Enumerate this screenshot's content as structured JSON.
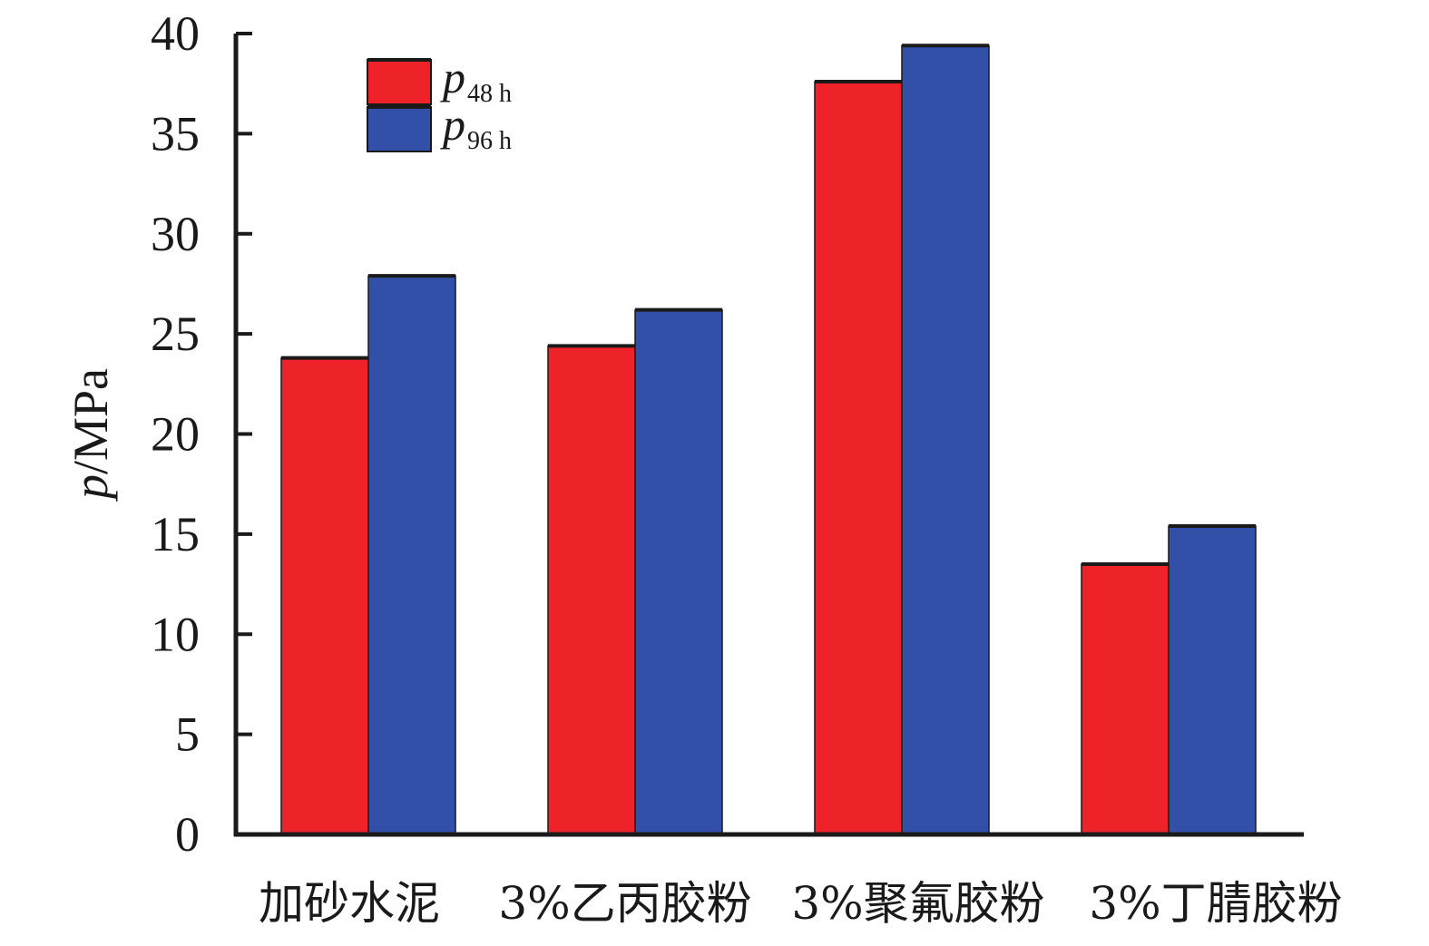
{
  "chart_data": {
    "type": "bar",
    "categories": [
      "加砂水泥",
      "3%乙丙胶粉",
      "3%聚氟胶粉",
      "3%丁腈胶粉"
    ],
    "series": [
      {
        "name": "p48 h",
        "label_main": "p",
        "label_sub": "48 h",
        "color": "#ee2229",
        "values": [
          23.8,
          24.4,
          37.6,
          13.5
        ]
      },
      {
        "name": "p96 h",
        "label_main": "p",
        "label_sub": "96 h",
        "color": "#3350a9",
        "values": [
          27.9,
          26.2,
          39.4,
          15.4
        ]
      }
    ],
    "ylabel_main": "p",
    "ylabel_unit": "/MPa",
    "ylim": [
      0,
      40
    ],
    "yticks": [
      0,
      5,
      10,
      15,
      20,
      25,
      30,
      35,
      40
    ],
    "grid": false,
    "legend_position": "top-left"
  }
}
